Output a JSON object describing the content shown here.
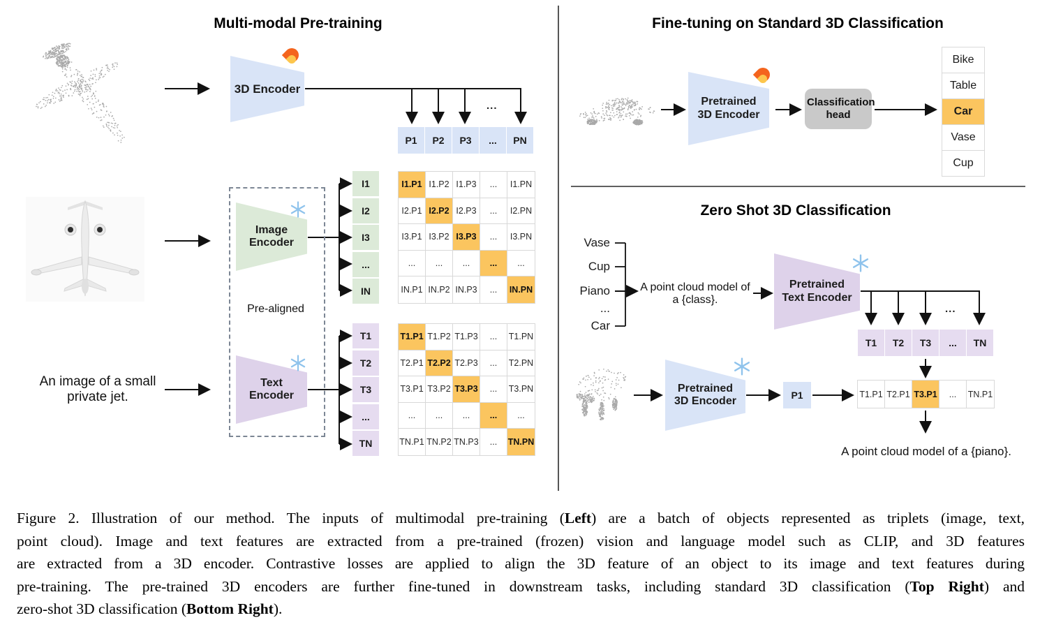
{
  "figure": {
    "left": {
      "title": "Multi-modal Pre-training",
      "encoder3d_label": "3D Encoder",
      "image_encoder_label": "Image Encoder",
      "text_encoder_label": "Text Encoder",
      "prealigned_label": "Pre-aligned",
      "image_text_caption": [
        "An image of a small",
        "private jet."
      ],
      "branch_ellipsis": "...",
      "p_row": [
        "P1",
        "P2",
        "P3",
        "...",
        "PN"
      ],
      "i_labels": [
        "I1",
        "I2",
        "I3",
        "...",
        "IN"
      ],
      "t_labels": [
        "T1",
        "T2",
        "T3",
        "...",
        "TN"
      ],
      "i_matrix": {
        "highlight": "diagonal",
        "rows": [
          [
            "I1.P1",
            "I1.P2",
            "I1.P3",
            "...",
            "I1.PN"
          ],
          [
            "I2.P1",
            "I2.P2",
            "I2.P3",
            "...",
            "I2.PN"
          ],
          [
            "I3.P1",
            "I3.P2",
            "I3.P3",
            "...",
            "I3.PN"
          ],
          [
            "...",
            "...",
            "...",
            "...",
            "..."
          ],
          [
            "IN.P1",
            "IN.P2",
            "IN.P3",
            "...",
            "IN.PN"
          ]
        ]
      },
      "t_matrix": {
        "highlight": "diagonal",
        "rows": [
          [
            "T1.P1",
            "T1.P2",
            "T1.P3",
            "...",
            "T1.PN"
          ],
          [
            "T2.P1",
            "T2.P2",
            "T2.P3",
            "...",
            "T2.PN"
          ],
          [
            "T3.P1",
            "T3.P2",
            "T3.P3",
            "...",
            "T3.PN"
          ],
          [
            "...",
            "...",
            "...",
            "...",
            "..."
          ],
          [
            "TN.P1",
            "TN.P2",
            "TN.P3",
            "...",
            "TN.PN"
          ]
        ]
      }
    },
    "top_right": {
      "title": "Fine-tuning on Standard 3D Classification",
      "encoder_label": "Pretrained 3D Encoder",
      "head_label": "Classification head",
      "classes": {
        "items": [
          "Bike",
          "Table",
          "Car",
          "Vase",
          "Cup"
        ],
        "highlighted": "Car"
      }
    },
    "bottom_right": {
      "title": "Zero Shot 3D Classification",
      "class_words": [
        "Vase",
        "Cup",
        "Piano",
        "...",
        "Car"
      ],
      "prompt": [
        "A point cloud model of",
        "a {class}."
      ],
      "text_encoder_label": "Pretrained Text Encoder",
      "encoder3d_label": "Pretrained 3D Encoder",
      "p1_label": "P1",
      "branch_ellipsis": "...",
      "t_row": [
        "T1",
        "T2",
        "T3",
        "...",
        "TN"
      ],
      "match_row": {
        "cells": [
          "T1.P1",
          "T2.P1",
          "T3.P1",
          "...",
          "TN.P1"
        ],
        "highlight_index": 2
      },
      "result_text": "A point cloud model of a {piano}."
    }
  },
  "icons": {
    "trainable": "flame-icon",
    "frozen": "snowflake-icon"
  },
  "colors": {
    "encoder_blue": "#d9e4f7",
    "encoder_green": "#dcead8",
    "encoder_purple": "#ded2ea",
    "cell_purple": "#e6dcf0",
    "highlight_orange": "#fbc55f",
    "head_gray": "#c9c9c9"
  },
  "caption": {
    "lines": [
      [
        {
          "t": "Figure 2. Illustration of our method. The inputs of multimodal pre-training ("
        },
        {
          "t": "Left",
          "b": true
        },
        {
          "t": ") are a batch of objects represented as triplets (image, text,"
        }
      ],
      [
        {
          "t": "point cloud). Image and text features are extracted from a pre-trained (frozen) vision and language model such as CLIP, and 3D features"
        }
      ],
      [
        {
          "t": "are extracted from a 3D encoder. Contrastive losses are applied to align the 3D feature of an object to its image and text features during"
        }
      ],
      [
        {
          "t": "pre-training. The pre-trained 3D encoders are further fine-tuned in downstream tasks, including standard 3D classification ("
        },
        {
          "t": "Top Right",
          "b": true
        },
        {
          "t": ") and"
        }
      ],
      [
        {
          "t": "zero-shot 3D classification ("
        },
        {
          "t": "Bottom Right",
          "b": true
        },
        {
          "t": ")."
        }
      ]
    ]
  }
}
